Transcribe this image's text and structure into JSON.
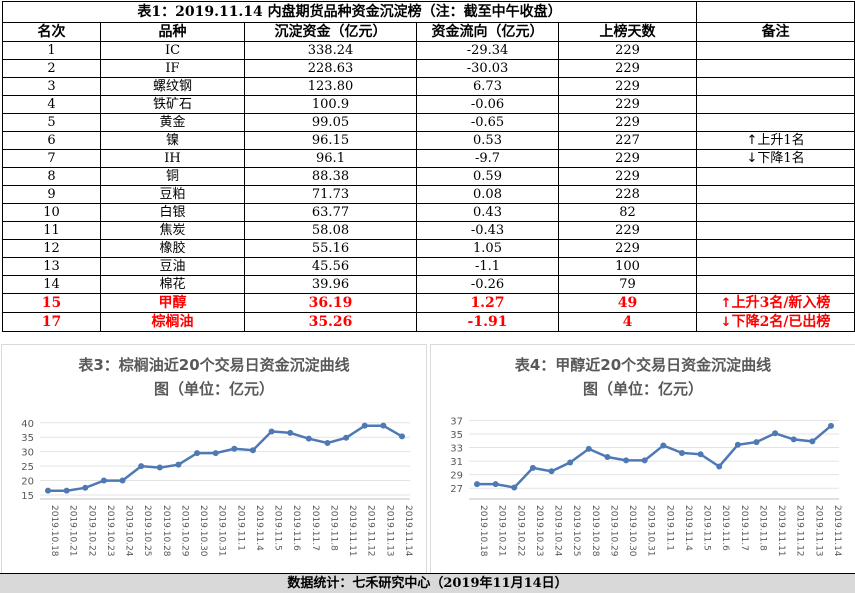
{
  "table": {
    "title": "表1：2019.11.14 内盘期货品种资金沉淀榜（注：截至中午收盘）",
    "headers": [
      "名次",
      "品种",
      "沉淀资金（亿元）",
      "资金流向（亿元）",
      "上榜天数",
      "备注"
    ],
    "rows": [
      {
        "rank": "1",
        "name": "IC",
        "capital": "338.24",
        "flow": "-29.34",
        "days": "229",
        "note": ""
      },
      {
        "rank": "2",
        "name": "IF",
        "capital": "228.63",
        "flow": "-30.03",
        "days": "229",
        "note": ""
      },
      {
        "rank": "3",
        "name": "螺纹钢",
        "capital": "123.80",
        "flow": "6.73",
        "days": "229",
        "note": ""
      },
      {
        "rank": "4",
        "name": "铁矿石",
        "capital": "100.9",
        "flow": "-0.06",
        "days": "229",
        "note": ""
      },
      {
        "rank": "5",
        "name": "黄金",
        "capital": "99.05",
        "flow": "-0.65",
        "days": "229",
        "note": ""
      },
      {
        "rank": "6",
        "name": "镍",
        "capital": "96.15",
        "flow": "0.53",
        "days": "227",
        "note_arrow": "↑",
        "note": "上升1名"
      },
      {
        "rank": "7",
        "name": "IH",
        "capital": "96.1",
        "flow": "-9.7",
        "days": "229",
        "note_arrow": "↓",
        "note": "下降1名"
      },
      {
        "rank": "8",
        "name": "铜",
        "capital": "88.38",
        "flow": "0.59",
        "days": "229",
        "note": ""
      },
      {
        "rank": "9",
        "name": "豆粕",
        "capital": "71.73",
        "flow": "0.08",
        "days": "228",
        "note": ""
      },
      {
        "rank": "10",
        "name": "白银",
        "capital": "63.77",
        "flow": "0.43",
        "days": "82",
        "note": ""
      },
      {
        "rank": "11",
        "name": "焦炭",
        "capital": "58.08",
        "flow": "-0.43",
        "days": "229",
        "note": ""
      },
      {
        "rank": "12",
        "name": "橡胶",
        "capital": "55.16",
        "flow": "1.05",
        "days": "229",
        "note": ""
      },
      {
        "rank": "13",
        "name": "豆油",
        "capital": "45.56",
        "flow": "-1.1",
        "days": "100",
        "note": ""
      },
      {
        "rank": "14",
        "name": "棉花",
        "capital": "39.96",
        "flow": "-0.26",
        "days": "79",
        "note": ""
      },
      {
        "rank": "15",
        "name": "甲醇",
        "capital": "36.19",
        "flow": "1.27",
        "days": "49",
        "note_arrow": "↑",
        "note": "上升3名/新入榜",
        "highlight": true
      },
      {
        "rank": "17",
        "name": "棕榈油",
        "capital": "35.26",
        "flow": "-1.91",
        "days": "4",
        "note_arrow": "↓",
        "note": "下降2名/已出榜",
        "highlight": true
      }
    ]
  },
  "chart_data": [
    {
      "type": "line",
      "title_line1": "表3：棕榈油近20个交易日资金沉淀曲线",
      "title_line2": "图（单位：亿元）",
      "categories": [
        "2019.10.18",
        "2019.10.21",
        "2019.10.22",
        "2019.10.23",
        "2019.10.24",
        "2019.10.25",
        "2019.10.28",
        "2019.10.29",
        "2019.10.30",
        "2019.10.31",
        "2019.11.1",
        "2019.11.4",
        "2019.11.5",
        "2019.11.6",
        "2019.11.7",
        "2019.11.8",
        "2019.11.11",
        "2019.11.12",
        "2019.11.13",
        "2019.11.14"
      ],
      "values": [
        16.5,
        16.5,
        17.5,
        20.0,
        20.0,
        25.0,
        24.5,
        25.5,
        29.5,
        29.5,
        31.0,
        30.5,
        37.0,
        36.5,
        34.5,
        33.0,
        34.8,
        39.0,
        39.0,
        35.3
      ],
      "yticks": [
        15,
        20,
        25,
        30,
        35,
        40
      ],
      "ylim": [
        15,
        42
      ],
      "color": "#4e79b4"
    },
    {
      "type": "line",
      "title_line1": "表4：甲醇近20个交易日资金沉淀曲线",
      "title_line2": "图（单位：亿元）",
      "categories": [
        "2019.10.18",
        "2019.10.21",
        "2019.10.22",
        "2019.10.23",
        "2019.10.24",
        "2019.10.25",
        "2019.10.28",
        "2019.10.29",
        "2019.10.30",
        "2019.10.31",
        "2019.11.1",
        "2019.11.4",
        "2019.11.5",
        "2019.11.6",
        "2019.11.7",
        "2019.11.8",
        "2019.11.11",
        "2019.11.12",
        "2019.11.13",
        "2019.11.14"
      ],
      "values": [
        27.6,
        27.6,
        27.1,
        30.0,
        29.5,
        30.8,
        32.8,
        31.6,
        31.1,
        31.1,
        33.3,
        32.2,
        32.0,
        30.2,
        33.4,
        33.8,
        35.1,
        34.2,
        33.9,
        36.2
      ],
      "yticks": [
        27,
        29,
        31,
        33,
        35,
        37
      ],
      "ylim": [
        26,
        37.5
      ],
      "color": "#4e79b4"
    }
  ],
  "footer": "数据统计：七禾研究中心（2019年11月14日）"
}
